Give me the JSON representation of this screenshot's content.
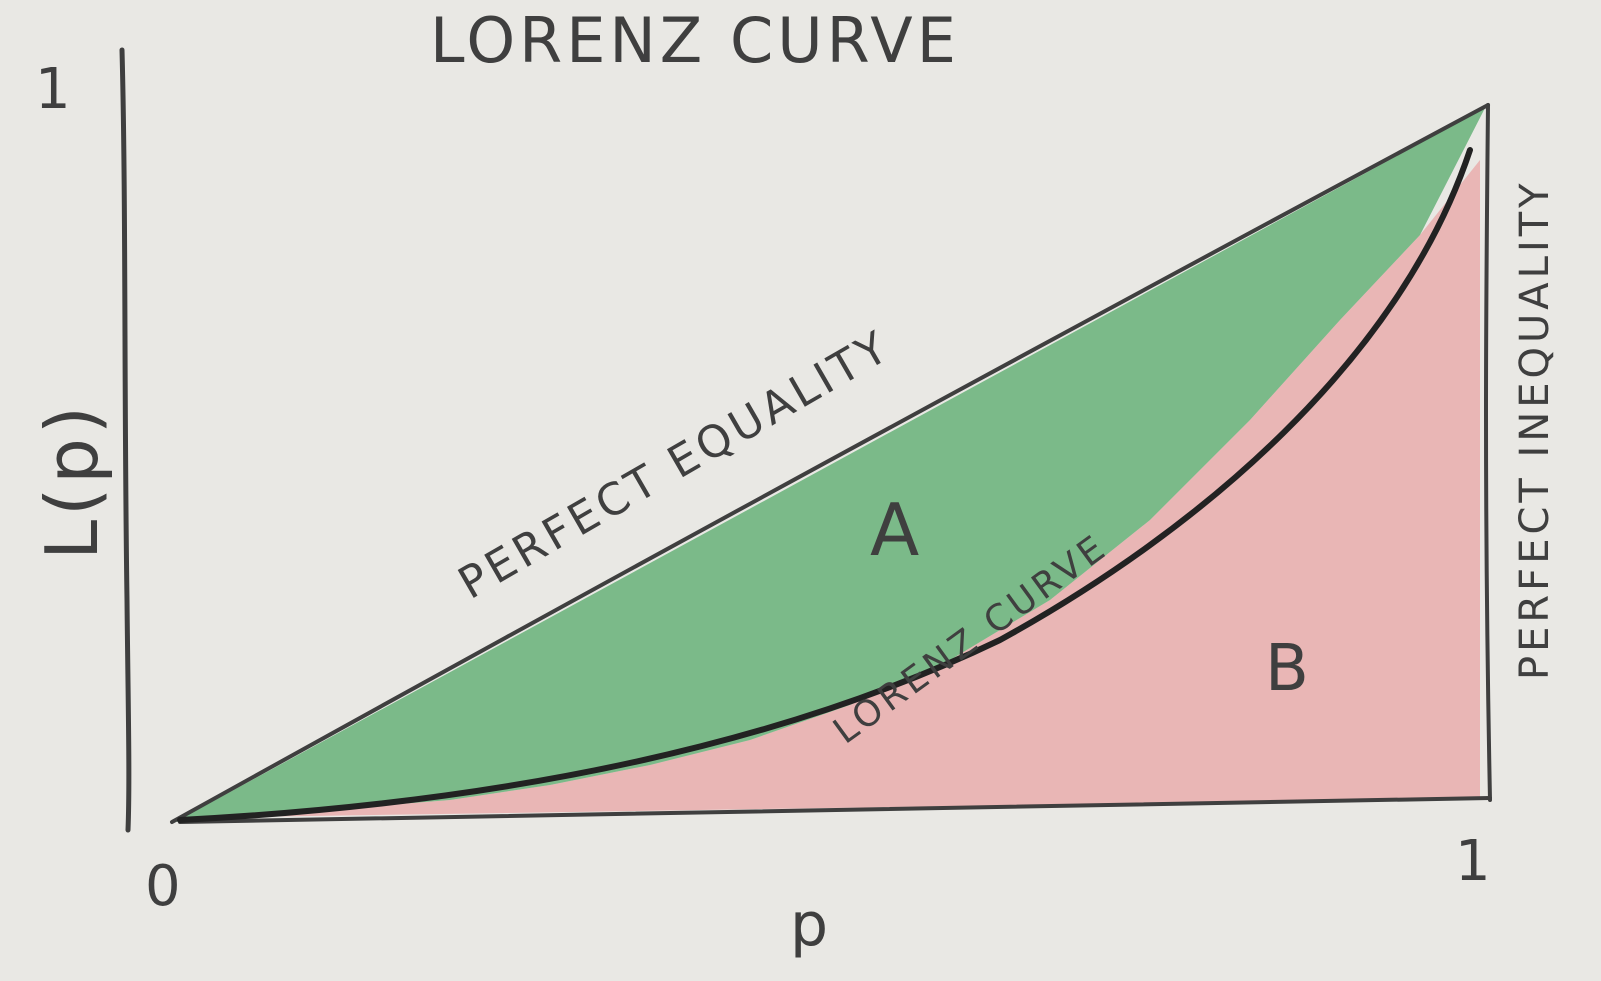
{
  "title": "LORENZ CURVE",
  "y_axis": {
    "label": "L(p)",
    "top_tick": "1"
  },
  "x_axis": {
    "label": "p",
    "origin_tick": "0",
    "end_tick": "1"
  },
  "labels": {
    "equality_line": "PERFECT EQUALITY",
    "lorenz_curve": "LORENZ CURVE",
    "inequality_line": "PERFECT INEQUALITY",
    "area_a": "A",
    "area_b": "B"
  },
  "colors": {
    "paper": "#e9e8e4",
    "area_a": "#5fae72",
    "area_b": "#e8a6a6",
    "pencil": "#3f3f3f"
  }
}
